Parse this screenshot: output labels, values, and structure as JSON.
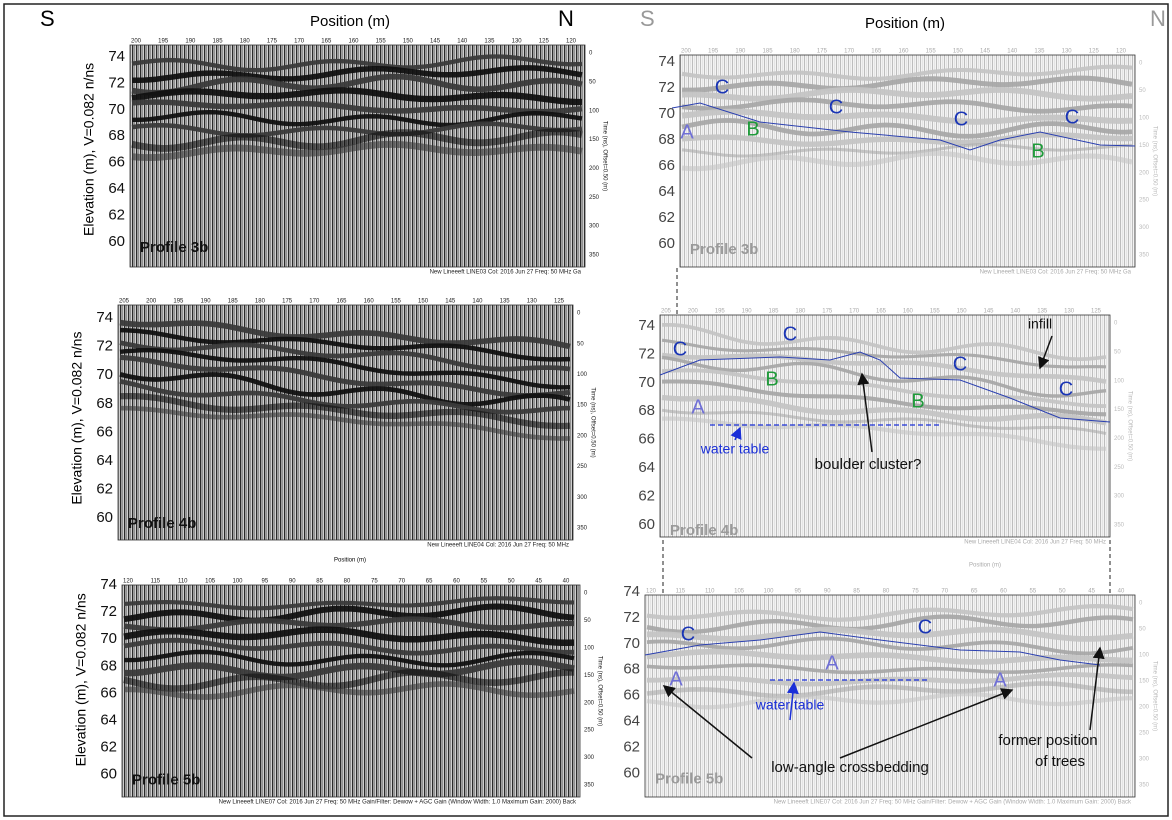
{
  "header": {
    "left_south": "S",
    "left_north": "N",
    "right_south": "S",
    "right_north": "N",
    "left_axis_title": "Position (m)",
    "right_axis_title": "Position (m)",
    "mid_axis_title": "Position (m)",
    "y_axis_title": "Elevation (m), V=0.082 n/ns",
    "time_axis_title": "Time (ns), Offset=0.50 (m)"
  },
  "elevation_ticks": [
    74,
    72,
    70,
    68,
    66,
    64,
    62,
    60
  ],
  "time_ticks": [
    0,
    50,
    100,
    150,
    200,
    250,
    300,
    350
  ],
  "left_panels": [
    {
      "profile": "Profile 3b",
      "positions": [
        200,
        195,
        190,
        185,
        180,
        175,
        170,
        165,
        160,
        155,
        150,
        145,
        140,
        135,
        130,
        125,
        120
      ],
      "footer": "New Lineeeft LINE03  Col: 2016 Jun 27  Freq: 50 MHz  Ga"
    },
    {
      "profile": "Profile 4b",
      "positions": [
        205,
        200,
        195,
        190,
        185,
        180,
        175,
        170,
        165,
        160,
        155,
        150,
        145,
        140,
        135,
        130,
        125
      ],
      "footer": "New Lineeeft LINE04  Col: 2016 Jun 27  Freq: 50 MHz"
    },
    {
      "profile": "Profile 5b",
      "positions": [
        120,
        115,
        110,
        105,
        100,
        95,
        90,
        85,
        80,
        75,
        70,
        65,
        60,
        55,
        50,
        45,
        40
      ],
      "footer": "New Lineeeft LINE07  Col: 2016 Jun 27  Freq: 50 MHz  Gain/Filter: Dewow + AGC Gain (Window Width: 1.0 Maximum Gain: 2000)  Back"
    }
  ],
  "right_panels": [
    {
      "profile": "Profile 3b",
      "footer": "New Lineeeft LINE03  Col: 2016 Jun 27  Freq: 50 MHz  Ga",
      "annotations": [
        {
          "text": "C",
          "color": "#1a35b5"
        },
        {
          "text": "C",
          "color": "#1a35b5"
        },
        {
          "text": "C",
          "color": "#1a35b5"
        },
        {
          "text": "C",
          "color": "#1a35b5"
        },
        {
          "text": "A",
          "color": "#6f6fd6"
        },
        {
          "text": "B",
          "color": "#1f9a3a"
        },
        {
          "text": "B",
          "color": "#1f9a3a"
        }
      ]
    },
    {
      "profile": "Profile 4b",
      "footer": "New Lineeeft LINE04  Col: 2016 Jun 27  Freq: 50 MHz",
      "annotations": [
        {
          "text": "C",
          "color": "#1a35b5"
        },
        {
          "text": "C",
          "color": "#1a35b5"
        },
        {
          "text": "C",
          "color": "#1a35b5"
        },
        {
          "text": "C",
          "color": "#1a35b5"
        },
        {
          "text": "B",
          "color": "#1f9a3a"
        },
        {
          "text": "B",
          "color": "#1f9a3a"
        },
        {
          "text": "A",
          "color": "#6f6fd6"
        },
        {
          "text": "infill",
          "color": "#111111"
        },
        {
          "text": "water table",
          "color": "#1a2fd8"
        },
        {
          "text": "boulder cluster?",
          "color": "#111111"
        }
      ]
    },
    {
      "profile": "Profile 5b",
      "footer": "New Lineeeft LINE07  Col: 2016 Jun 27  Freq: 50 MHz  Gain/Filter: Dewow + AGC Gain (Window Width: 1.0 Maximum Gain: 2000)  Back",
      "annotations": [
        {
          "text": "C",
          "color": "#1a35b5"
        },
        {
          "text": "C",
          "color": "#1a35b5"
        },
        {
          "text": "A",
          "color": "#6f6fd6"
        },
        {
          "text": "A",
          "color": "#6f6fd6"
        },
        {
          "text": "A",
          "color": "#6f6fd6"
        },
        {
          "text": "water table",
          "color": "#1a2fd8"
        },
        {
          "text": "low-angle crossbedding",
          "color": "#111111"
        },
        {
          "text": "former position",
          "color": "#111111"
        },
        {
          "text": "of trees",
          "color": "#111111"
        }
      ]
    }
  ]
}
